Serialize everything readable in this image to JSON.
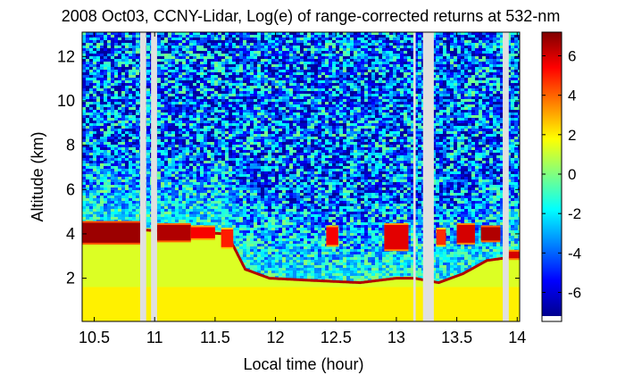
{
  "chart_data": {
    "type": "heatmap",
    "title": "2008 Oct03, CCNY-Lidar, Log(e) of range-corrected returns at 532-nm",
    "xlabel": "Local time (hour)",
    "ylabel": "Altitude (km)",
    "xlim": [
      10.4,
      14.02
    ],
    "ylim": [
      0.05,
      13.1
    ],
    "x_ticks": [
      10.5,
      11,
      11.5,
      12,
      12.5,
      13,
      13.5,
      14
    ],
    "x_tick_labels": [
      "10.5",
      "11",
      "11.5",
      "12",
      "12.5",
      "13",
      "13.5",
      "14"
    ],
    "y_ticks": [
      2,
      4,
      6,
      8,
      10,
      12
    ],
    "y_tick_labels": [
      "2",
      "4",
      "6",
      "8",
      "10",
      "12"
    ],
    "colorbar": {
      "min": -7.2,
      "max": 7.2,
      "ticks": [
        6,
        4,
        2,
        0,
        -2,
        -4,
        -6
      ],
      "tick_labels": [
        "6",
        "4",
        "2",
        "0",
        "-2",
        "-4",
        "-6"
      ],
      "colormap": [
        "#00008f",
        "#0000ff",
        "#0080ff",
        "#00ffff",
        "#80ff80",
        "#ffff00",
        "#ff8000",
        "#ff0000",
        "#800000"
      ]
    },
    "no_data_color": "#e0e0e0",
    "data_gaps": [
      [
        10.88,
        10.93
      ],
      [
        10.97,
        11.02
      ],
      [
        13.14,
        13.16
      ],
      [
        13.22,
        13.31
      ],
      [
        13.88,
        13.93
      ]
    ],
    "boundary_layer_top": [
      {
        "x": 10.4,
        "y": 4.3
      },
      {
        "x": 11.6,
        "y": 4.0
      },
      {
        "x": 11.75,
        "y": 2.4
      },
      {
        "x": 11.95,
        "y": 2.0
      },
      {
        "x": 12.3,
        "y": 1.9
      },
      {
        "x": 12.7,
        "y": 1.8
      },
      {
        "x": 13.0,
        "y": 2.0
      },
      {
        "x": 13.15,
        "y": 2.0
      },
      {
        "x": 13.35,
        "y": 1.8
      },
      {
        "x": 13.55,
        "y": 2.2
      },
      {
        "x": 13.75,
        "y": 2.8
      },
      {
        "x": 14.02,
        "y": 3.0
      }
    ],
    "cloud_layers": [
      {
        "x0": 10.4,
        "x1": 10.88,
        "y0": 3.6,
        "y1": 4.5,
        "value": 6.8
      },
      {
        "x0": 11.02,
        "x1": 11.3,
        "y0": 3.7,
        "y1": 4.4,
        "value": 6.5
      },
      {
        "x0": 11.3,
        "x1": 11.5,
        "y0": 3.8,
        "y1": 4.3,
        "value": 5.5
      },
      {
        "x0": 11.55,
        "x1": 11.65,
        "y0": 3.4,
        "y1": 4.2,
        "value": 5.0
      },
      {
        "x0": 12.42,
        "x1": 12.52,
        "y0": 3.5,
        "y1": 4.3,
        "value": 5.5
      },
      {
        "x0": 12.9,
        "x1": 13.1,
        "y0": 3.3,
        "y1": 4.4,
        "value": 5.8
      },
      {
        "x0": 13.33,
        "x1": 13.41,
        "y0": 3.5,
        "y1": 4.2,
        "value": 4.8
      },
      {
        "x0": 13.5,
        "x1": 13.65,
        "y0": 3.6,
        "y1": 4.4,
        "value": 6.0
      },
      {
        "x0": 13.7,
        "x1": 13.86,
        "y0": 3.7,
        "y1": 4.3,
        "value": 6.5
      },
      {
        "x0": 13.93,
        "x1": 14.02,
        "y0": 2.9,
        "y1": 3.2,
        "value": 6.0
      }
    ],
    "background_values": {
      "surface": 2.0,
      "boundary_layer": 1.3,
      "boundary_top_edge": 6.5,
      "free_troposphere": -1.5,
      "upper_noise_range": [
        -7.0,
        1.0
      ]
    }
  }
}
